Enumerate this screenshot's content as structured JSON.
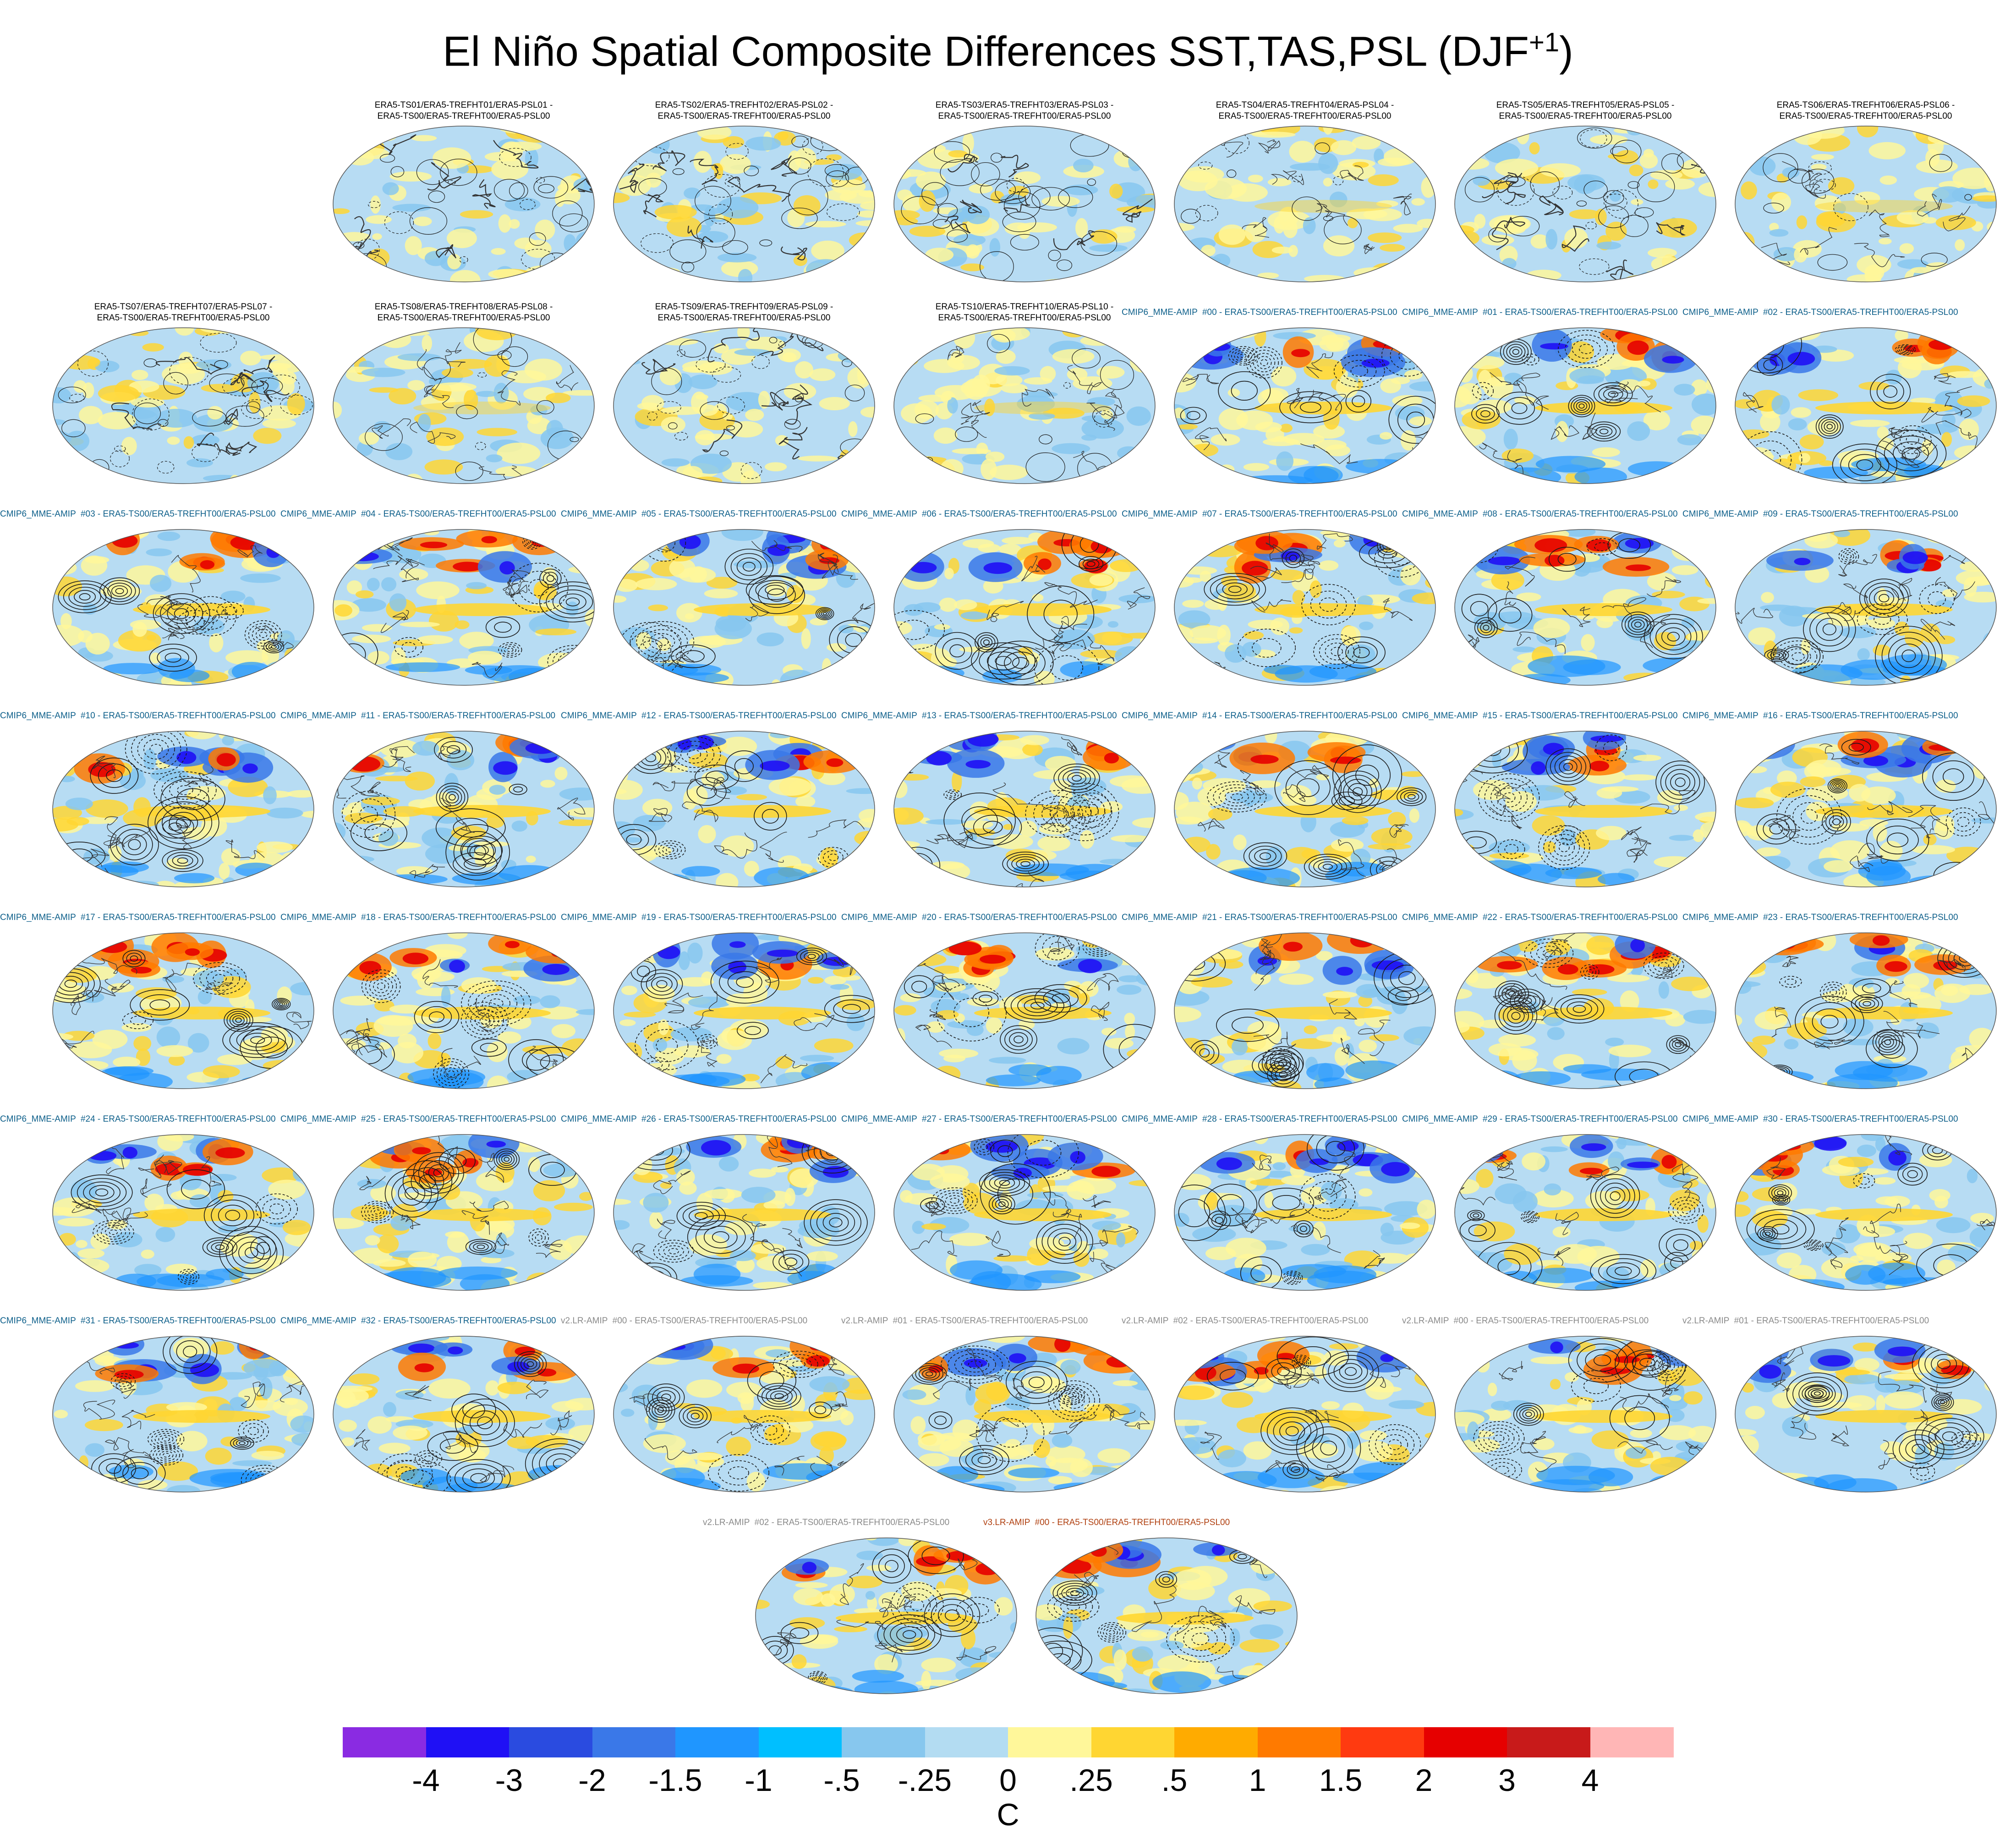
{
  "title": {
    "text": "El Niño Spatial Composite Differences SST,TAS,PSL (DJF",
    "superscript": "+1",
    "closing": ")"
  },
  "colors": {
    "obs_title": "#000000",
    "mme_title": "#0d5f8a",
    "v2lr_title": "#8a8a8a",
    "v2_title": "#8a8a8a",
    "v3lr_title": "#b04010",
    "ocean_base": "#b7dcf3",
    "land_yellow": "#fdf59a",
    "contour": "#1a1a1a"
  },
  "panels": [
    {
      "type": "obs",
      "strength": 0.0,
      "label": "ERA5-TS01/ERA5-TREFHT01/ERA5-PSL01 -\nERA5-TS00/ERA5-TREFHT00/ERA5-PSL00"
    },
    {
      "type": "obs",
      "strength": 0.0,
      "label": "ERA5-TS02/ERA5-TREFHT02/ERA5-PSL02 -\nERA5-TS00/ERA5-TREFHT00/ERA5-PSL00"
    },
    {
      "type": "obs",
      "strength": 0.0,
      "label": "ERA5-TS03/ERA5-TREFHT03/ERA5-PSL03 -\nERA5-TS00/ERA5-TREFHT00/ERA5-PSL00"
    },
    {
      "type": "obs",
      "strength": 0.4,
      "label": "ERA5-TS04/ERA5-TREFHT04/ERA5-PSL04 -\nERA5-TS00/ERA5-TREFHT00/ERA5-PSL00"
    },
    {
      "type": "obs",
      "strength": 0.0,
      "label": "ERA5-TS05/ERA5-TREFHT05/ERA5-PSL05 -\nERA5-TS00/ERA5-TREFHT00/ERA5-PSL00"
    },
    {
      "type": "obs",
      "strength": 0.4,
      "label": "ERA5-TS06/ERA5-TREFHT06/ERA5-PSL06 -\nERA5-TS00/ERA5-TREFHT00/ERA5-PSL00"
    },
    {
      "type": "obs",
      "strength": 0.0,
      "label": "ERA5-TS07/ERA5-TREFHT07/ERA5-PSL07 -\nERA5-TS00/ERA5-TREFHT00/ERA5-PSL00"
    },
    {
      "type": "obs",
      "strength": 0.4,
      "label": "ERA5-TS08/ERA5-TREFHT08/ERA5-PSL08 -\nERA5-TS00/ERA5-TREFHT00/ERA5-PSL00"
    },
    {
      "type": "obs",
      "strength": 0.0,
      "label": "ERA5-TS09/ERA5-TREFHT09/ERA5-PSL09 -\nERA5-TS00/ERA5-TREFHT00/ERA5-PSL00"
    },
    {
      "type": "obs",
      "strength": 0.4,
      "label": "ERA5-TS10/ERA5-TREFHT10/ERA5-PSL10 -\nERA5-TS00/ERA5-TREFHT00/ERA5-PSL00"
    },
    {
      "type": "mme",
      "strength": 1,
      "label": "CMIP6_MME-AMIP  #00 - ERA5-TS00/ERA5-TREFHT00/ERA5-PSL00"
    },
    {
      "type": "mme",
      "strength": 1,
      "label": "CMIP6_MME-AMIP  #01 - ERA5-TS00/ERA5-TREFHT00/ERA5-PSL00"
    },
    {
      "type": "mme",
      "strength": 1,
      "label": "CMIP6_MME-AMIP  #02 - ERA5-TS00/ERA5-TREFHT00/ERA5-PSL00"
    },
    {
      "type": "mme",
      "strength": 1,
      "label": "CMIP6_MME-AMIP  #03 - ERA5-TS00/ERA5-TREFHT00/ERA5-PSL00"
    },
    {
      "type": "mme",
      "strength": 1,
      "label": "CMIP6_MME-AMIP  #04 - ERA5-TS00/ERA5-TREFHT00/ERA5-PSL00"
    },
    {
      "type": "mme",
      "strength": 1,
      "label": "CMIP6_MME-AMIP  #05 - ERA5-TS00/ERA5-TREFHT00/ERA5-PSL00"
    },
    {
      "type": "mme",
      "strength": 1,
      "label": "CMIP6_MME-AMIP  #06 - ERA5-TS00/ERA5-TREFHT00/ERA5-PSL00"
    },
    {
      "type": "mme",
      "strength": 1,
      "label": "CMIP6_MME-AMIP  #07 - ERA5-TS00/ERA5-TREFHT00/ERA5-PSL00"
    },
    {
      "type": "mme",
      "strength": 1,
      "label": "CMIP6_MME-AMIP  #08 - ERA5-TS00/ERA5-TREFHT00/ERA5-PSL00"
    },
    {
      "type": "mme",
      "strength": 1,
      "label": "CMIP6_MME-AMIP  #09 - ERA5-TS00/ERA5-TREFHT00/ERA5-PSL00"
    },
    {
      "type": "mme",
      "strength": 1,
      "label": "CMIP6_MME-AMIP  #10 - ERA5-TS00/ERA5-TREFHT00/ERA5-PSL00"
    },
    {
      "type": "mme",
      "strength": 1,
      "label": "CMIP6_MME-AMIP  #11 - ERA5-TS00/ERA5-TREFHT00/ERA5-PSL00"
    },
    {
      "type": "mme",
      "strength": 1,
      "label": "CMIP6_MME-AMIP  #12 - ERA5-TS00/ERA5-TREFHT00/ERA5-PSL00"
    },
    {
      "type": "mme",
      "strength": 1,
      "label": "CMIP6_MME-AMIP  #13 - ERA5-TS00/ERA5-TREFHT00/ERA5-PSL00"
    },
    {
      "type": "mme",
      "strength": 1,
      "label": "CMIP6_MME-AMIP  #14 - ERA5-TS00/ERA5-TREFHT00/ERA5-PSL00"
    },
    {
      "type": "mme",
      "strength": 1,
      "label": "CMIP6_MME-AMIP  #15 - ERA5-TS00/ERA5-TREFHT00/ERA5-PSL00"
    },
    {
      "type": "mme",
      "strength": 1,
      "label": "CMIP6_MME-AMIP  #16 - ERA5-TS00/ERA5-TREFHT00/ERA5-PSL00"
    },
    {
      "type": "mme",
      "strength": 1,
      "label": "CMIP6_MME-AMIP  #17 - ERA5-TS00/ERA5-TREFHT00/ERA5-PSL00"
    },
    {
      "type": "mme",
      "strength": 1,
      "label": "CMIP6_MME-AMIP  #18 - ERA5-TS00/ERA5-TREFHT00/ERA5-PSL00"
    },
    {
      "type": "mme",
      "strength": 1,
      "label": "CMIP6_MME-AMIP  #19 - ERA5-TS00/ERA5-TREFHT00/ERA5-PSL00"
    },
    {
      "type": "mme",
      "strength": 1,
      "label": "CMIP6_MME-AMIP  #20 - ERA5-TS00/ERA5-TREFHT00/ERA5-PSL00"
    },
    {
      "type": "mme",
      "strength": 1,
      "label": "CMIP6_MME-AMIP  #21 - ERA5-TS00/ERA5-TREFHT00/ERA5-PSL00"
    },
    {
      "type": "mme",
      "strength": 1,
      "label": "CMIP6_MME-AMIP  #22 - ERA5-TS00/ERA5-TREFHT00/ERA5-PSL00"
    },
    {
      "type": "mme",
      "strength": 1,
      "label": "CMIP6_MME-AMIP  #23 - ERA5-TS00/ERA5-TREFHT00/ERA5-PSL00"
    },
    {
      "type": "mme",
      "strength": 1,
      "label": "CMIP6_MME-AMIP  #24 - ERA5-TS00/ERA5-TREFHT00/ERA5-PSL00"
    },
    {
      "type": "mme",
      "strength": 1,
      "label": "CMIP6_MME-AMIP  #25 - ERA5-TS00/ERA5-TREFHT00/ERA5-PSL00"
    },
    {
      "type": "mme",
      "strength": 1,
      "label": "CMIP6_MME-AMIP  #26 - ERA5-TS00/ERA5-TREFHT00/ERA5-PSL00"
    },
    {
      "type": "mme",
      "strength": 1,
      "label": "CMIP6_MME-AMIP  #27 - ERA5-TS00/ERA5-TREFHT00/ERA5-PSL00"
    },
    {
      "type": "mme",
      "strength": 1,
      "label": "CMIP6_MME-AMIP  #28 - ERA5-TS00/ERA5-TREFHT00/ERA5-PSL00"
    },
    {
      "type": "mme",
      "strength": 1,
      "label": "CMIP6_MME-AMIP  #29 - ERA5-TS00/ERA5-TREFHT00/ERA5-PSL00"
    },
    {
      "type": "mme",
      "strength": 1,
      "label": "CMIP6_MME-AMIP  #30 - ERA5-TS00/ERA5-TREFHT00/ERA5-PSL00"
    },
    {
      "type": "mme",
      "strength": 1,
      "label": "CMIP6_MME-AMIP  #31 - ERA5-TS00/ERA5-TREFHT00/ERA5-PSL00"
    },
    {
      "type": "mme",
      "strength": 1,
      "label": "CMIP6_MME-AMIP  #32 - ERA5-TS00/ERA5-TREFHT00/ERA5-PSL00"
    },
    {
      "type": "v2lr",
      "strength": 1,
      "label": "v2.LR-AMIP  #00 - ERA5-TS00/ERA5-TREFHT00/ERA5-PSL00"
    },
    {
      "type": "v2lr",
      "strength": 1,
      "label": "v2.LR-AMIP  #01 - ERA5-TS00/ERA5-TREFHT00/ERA5-PSL00"
    },
    {
      "type": "v2lr",
      "strength": 1,
      "label": "v2.LR-AMIP  #02 - ERA5-TS00/ERA5-TREFHT00/ERA5-PSL00"
    },
    {
      "type": "v2",
      "strength": 1,
      "label": "v2.LR-AMIP  #00 - ERA5-TS00/ERA5-TREFHT00/ERA5-PSL00"
    },
    {
      "type": "v2",
      "strength": 1,
      "label": "v2.LR-AMIP  #01 - ERA5-TS00/ERA5-TREFHT00/ERA5-PSL00"
    },
    {
      "type": "v2lr",
      "strength": 1,
      "label": "v2.LR-AMIP  #02 - ERA5-TS00/ERA5-TREFHT00/ERA5-PSL00"
    },
    {
      "type": "v3lr",
      "strength": 1,
      "label": "v3.LR-AMIP  #00 - ERA5-TS00/ERA5-TREFHT00/ERA5-PSL00"
    }
  ],
  "chart_data": {
    "type": "heatmap",
    "title": "El Niño Spatial Composite Differences SST,TAS,PSL (DJF+1)",
    "panel_count": 50,
    "colorbar": {
      "units": "C",
      "labels": [
        "-4",
        "-3",
        "-2",
        "-1.5",
        "-1",
        "-.5",
        "-.25",
        "0",
        ".25",
        ".5",
        "1",
        "1.5",
        "2",
        "3",
        "4"
      ],
      "levels": [
        -4,
        -3,
        -2,
        -1.5,
        -1,
        -0.5,
        -0.25,
        0,
        0.25,
        0.5,
        1,
        1.5,
        2,
        3,
        4
      ],
      "colors": [
        "#8a2be2",
        "#1f10f5",
        "#2a4be0",
        "#3a78e8",
        "#1f96ff",
        "#00bfff",
        "#87c7ee",
        "#b3dcf2",
        "#fff79a",
        "#ffd632",
        "#ffab00",
        "#ff7a00",
        "#ff3a10",
        "#e60000",
        "#c81a1a",
        "#ffb6b6"
      ]
    }
  }
}
